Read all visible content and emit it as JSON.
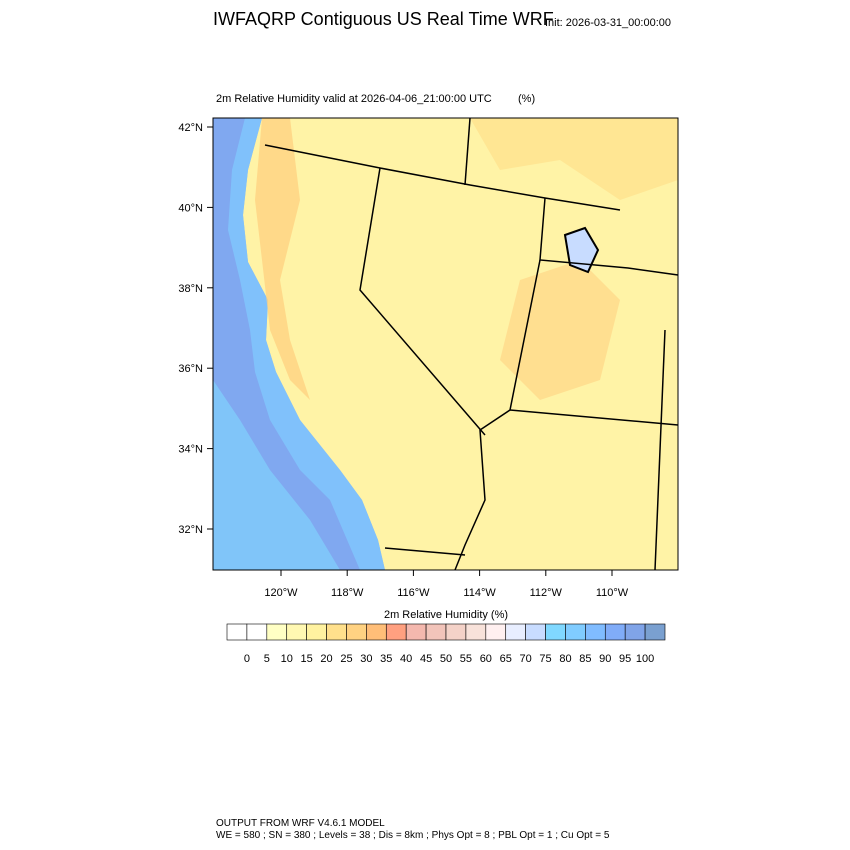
{
  "header": {
    "title": "IWFAQRP Contiguous US Real Time WRF",
    "init": "Init: 2026-03-31_00:00:00"
  },
  "map": {
    "subtitle": "2m Relative Humidity valid at 2026-04-06_21:00:00 UTC",
    "units": "(%)",
    "lat_ticks": [
      {
        "value": 42,
        "label": "42°N"
      },
      {
        "value": 40,
        "label": "40°N"
      },
      {
        "value": 38,
        "label": "38°N"
      },
      {
        "value": 36,
        "label": "36°N"
      },
      {
        "value": 34,
        "label": "34°N"
      },
      {
        "value": 32,
        "label": "32°N"
      }
    ],
    "lon_ticks": [
      {
        "value": -120,
        "label": "120°W"
      },
      {
        "value": -118,
        "label": "118°W"
      },
      {
        "value": -116,
        "label": "116°W"
      },
      {
        "value": -114,
        "label": "114°W"
      },
      {
        "value": -112,
        "label": "112°W"
      },
      {
        "value": -110,
        "label": "110°W"
      }
    ]
  },
  "colorbar": {
    "title": "2m Relative Humidity  (%)",
    "labels": [
      0,
      5,
      10,
      15,
      20,
      25,
      30,
      35,
      40,
      45,
      50,
      55,
      60,
      65,
      70,
      75,
      80,
      85,
      90,
      95,
      100
    ],
    "colors": [
      "#ffffff",
      "#ffffc4",
      "#fff8b2",
      "#fff2a0",
      "#ffe08c",
      "#ffd282",
      "#ffbe78",
      "#ffa080",
      "#f4b8ae",
      "#f2c4ba",
      "#f4d2c8",
      "#f8e2da",
      "#fff0f0",
      "#e8eeff",
      "#c8dcff",
      "#80d8ff",
      "#80ccff",
      "#80bcff",
      "#80acf8",
      "#80a4e8",
      "#7aa0d0"
    ]
  },
  "footer": {
    "line1": "OUTPUT FROM WRF V4.6.1 MODEL",
    "line2": "WE = 580 ; SN = 380 ; Levels = 38 ; Dis = 8km ; Phys Opt = 8 ; PBL Opt = 1 ; Cu Opt = 5"
  }
}
